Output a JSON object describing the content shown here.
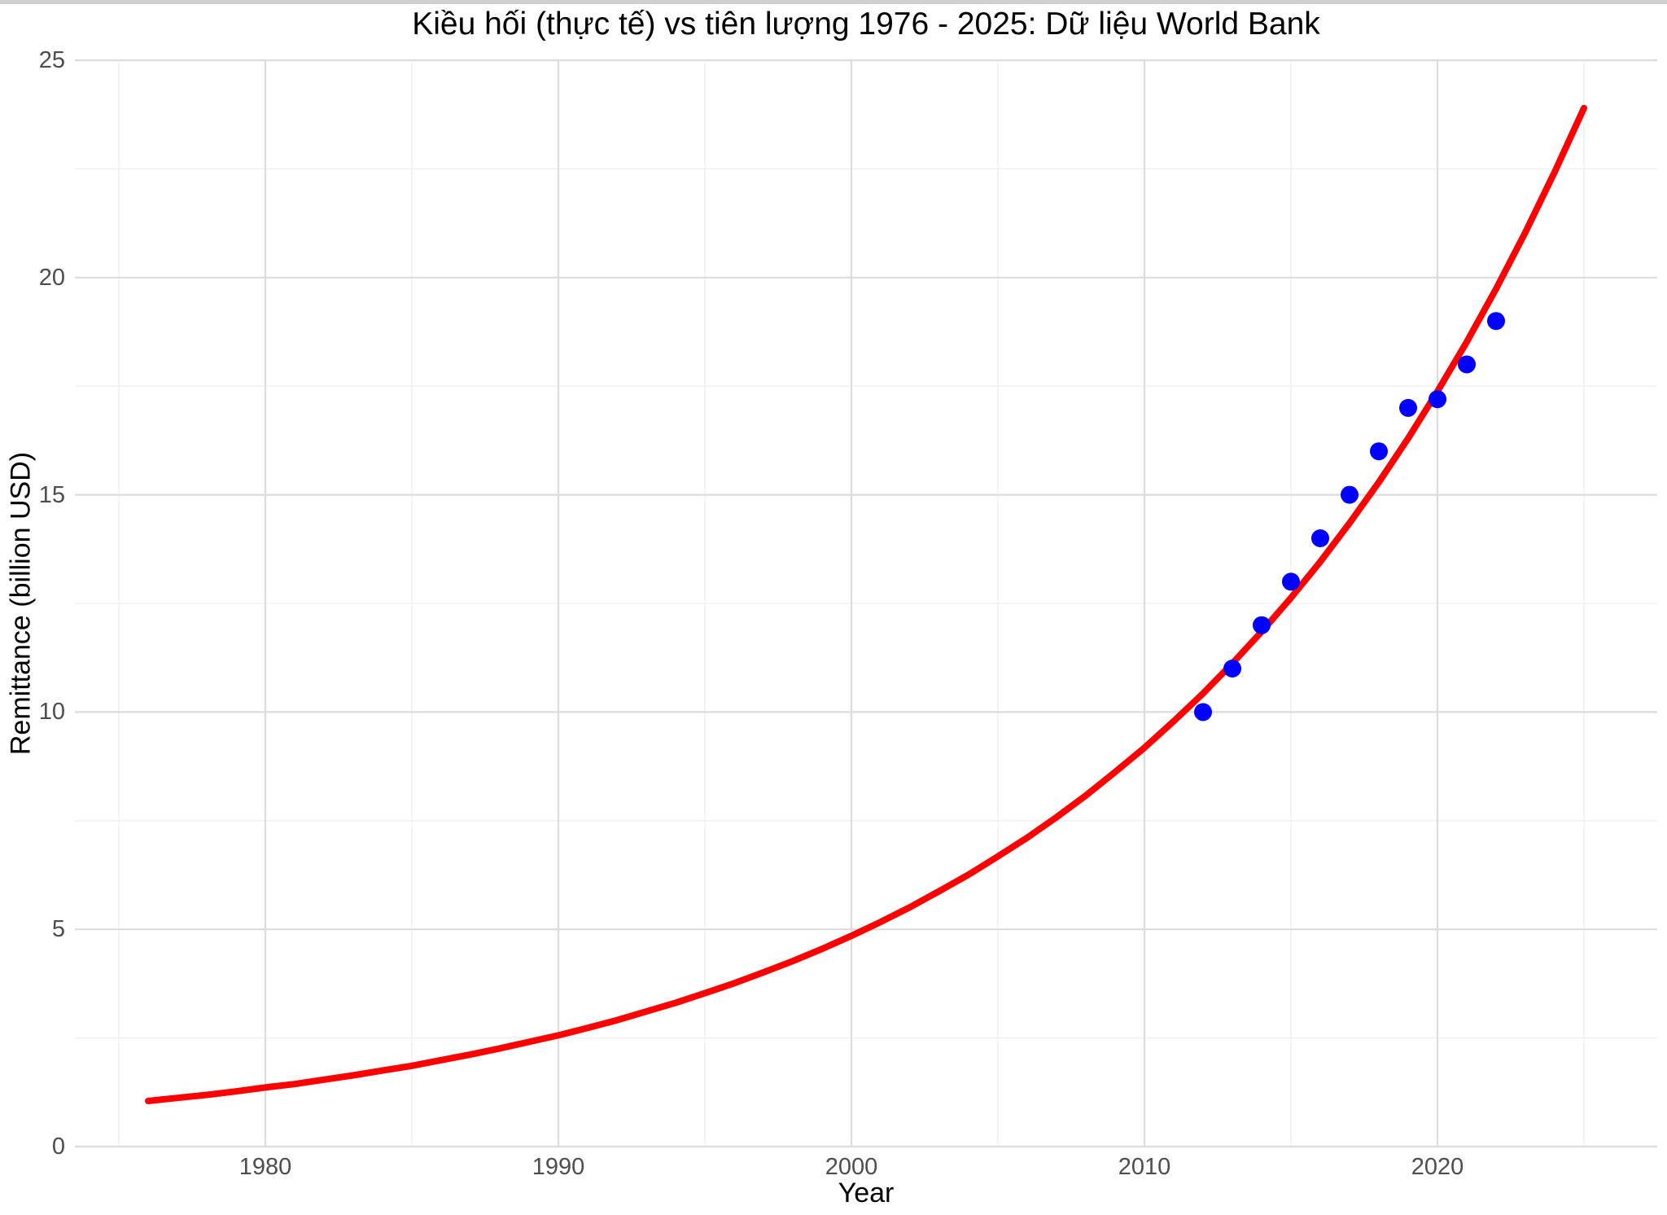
{
  "colors": {
    "forecast_line": "#ff0000",
    "actual_points": "#0000ff",
    "grid_major": "#dcdcdc",
    "grid_minor": "#efefef",
    "tick_text": "#4d4d4d",
    "title_text": "#000000",
    "top_bar": "#cecece",
    "background": "#ffffff"
  },
  "chart_data": {
    "type": "scatter",
    "title": "Kiều hối (thực tế) vs tiên lượng 1976 - 2025: Dữ liệu World Bank",
    "xlabel": "Year",
    "ylabel": "Remittance (billion USD)",
    "xlim": [
      1973.5,
      2027.5
    ],
    "ylim": [
      0,
      25
    ],
    "x_ticks": [
      1980,
      1990,
      2000,
      2010,
      2020
    ],
    "x_minor_ticks": [
      1975,
      1985,
      1995,
      2005,
      2015,
      2025
    ],
    "y_ticks": [
      0,
      5,
      10,
      15,
      20,
      25
    ],
    "y_minor_ticks": [
      2.5,
      7.5,
      12.5,
      17.5,
      22.5
    ],
    "grid": "major+minor",
    "legend": "none",
    "series": [
      {
        "name": "actual",
        "type": "scatter",
        "color": "#0000ff",
        "marker_radius": 11,
        "x": [
          2012,
          2013,
          2014,
          2015,
          2016,
          2017,
          2018,
          2019,
          2020,
          2021,
          2022
        ],
        "y": [
          10,
          11,
          12,
          13,
          14,
          15,
          16,
          17,
          17.2,
          18,
          19
        ]
      },
      {
        "name": "forecast",
        "type": "line",
        "color": "#ff0000",
        "line_width": 8,
        "x": [
          1976,
          1977,
          1978,
          1979,
          1980,
          1981,
          1982,
          1983,
          1984,
          1985,
          1986,
          1987,
          1988,
          1989,
          1990,
          1991,
          1992,
          1993,
          1994,
          1995,
          1996,
          1997,
          1998,
          1999,
          2000,
          2001,
          2002,
          2003,
          2004,
          2005,
          2006,
          2007,
          2008,
          2009,
          2010,
          2011,
          2012,
          2013,
          2014,
          2015,
          2016,
          2017,
          2018,
          2019,
          2020,
          2021,
          2022,
          2023,
          2024,
          2025
        ],
        "y": [
          1.05,
          1.12,
          1.19,
          1.27,
          1.36,
          1.44,
          1.54,
          1.64,
          1.75,
          1.86,
          1.99,
          2.12,
          2.26,
          2.41,
          2.56,
          2.73,
          2.91,
          3.11,
          3.31,
          3.53,
          3.76,
          4.01,
          4.27,
          4.55,
          4.85,
          5.17,
          5.51,
          5.88,
          6.26,
          6.68,
          7.11,
          7.58,
          8.08,
          8.62,
          9.18,
          9.79,
          10.43,
          11.12,
          11.85,
          12.63,
          13.46,
          14.35,
          15.29,
          16.3,
          17.38,
          18.52,
          19.74,
          21.04,
          22.43,
          23.9
        ]
      }
    ]
  }
}
